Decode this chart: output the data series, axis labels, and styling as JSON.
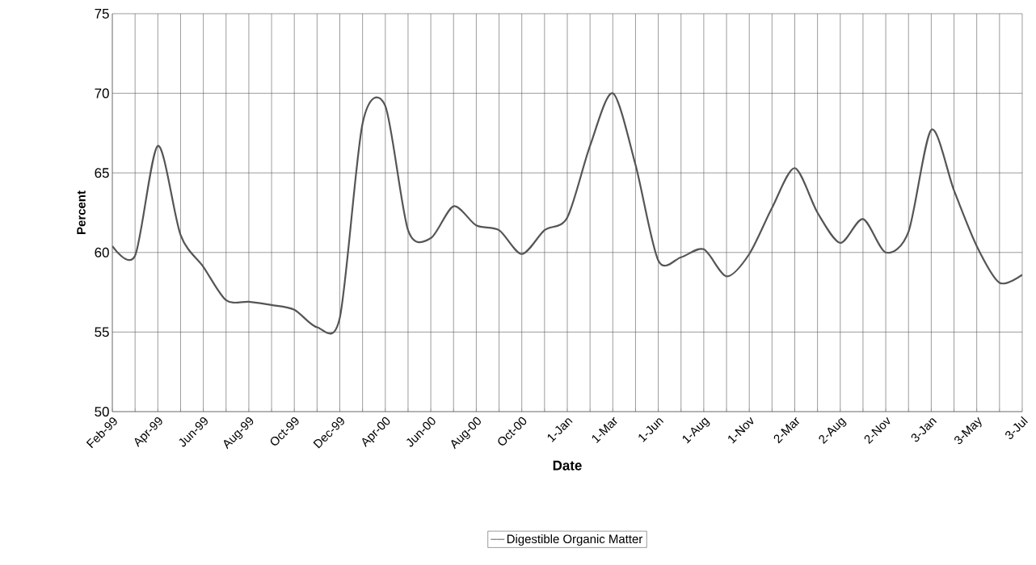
{
  "chart_data": {
    "type": "line",
    "xlabel": "Date",
    "ylabel": "Percent",
    "categories": [
      "Feb-99",
      null,
      "Apr-99",
      null,
      "Jun-99",
      null,
      "Aug-99",
      null,
      "Oct-99",
      null,
      "Dec-99",
      null,
      "Apr-00",
      null,
      "Jun-00",
      null,
      "Aug-00",
      null,
      "Oct-00",
      null,
      "1-Jan",
      null,
      "1-Mar",
      null,
      "1-Jun",
      null,
      "1-Aug",
      null,
      "1-Nov",
      null,
      "2-Mar",
      null,
      "2-Aug",
      null,
      "2-Nov",
      null,
      "3-Jan",
      null,
      "3-May",
      null,
      "3-Jul"
    ],
    "series": [
      {
        "name": "Digestible Organic Matter",
        "color": "#555555",
        "values": [
          60.4,
          59.8,
          66.7,
          61.1,
          59.1,
          57.0,
          56.9,
          56.7,
          56.4,
          55.3,
          55.9,
          68.1,
          69.2,
          61.4,
          60.9,
          62.9,
          61.7,
          61.4,
          59.9,
          61.4,
          62.2,
          66.7,
          70.0,
          65.5,
          59.5,
          59.7,
          60.2,
          58.5,
          59.9,
          62.8,
          65.3,
          62.5,
          60.6,
          62.1,
          60.0,
          61.3,
          67.7,
          63.9,
          60.4,
          58.1,
          58.6
        ]
      }
    ],
    "ylim": [
      50,
      75
    ],
    "yticks": [
      50,
      55,
      60,
      65,
      70,
      75
    ],
    "grid": true,
    "legend": "bottom",
    "marker": "none",
    "line_style": "solid"
  }
}
